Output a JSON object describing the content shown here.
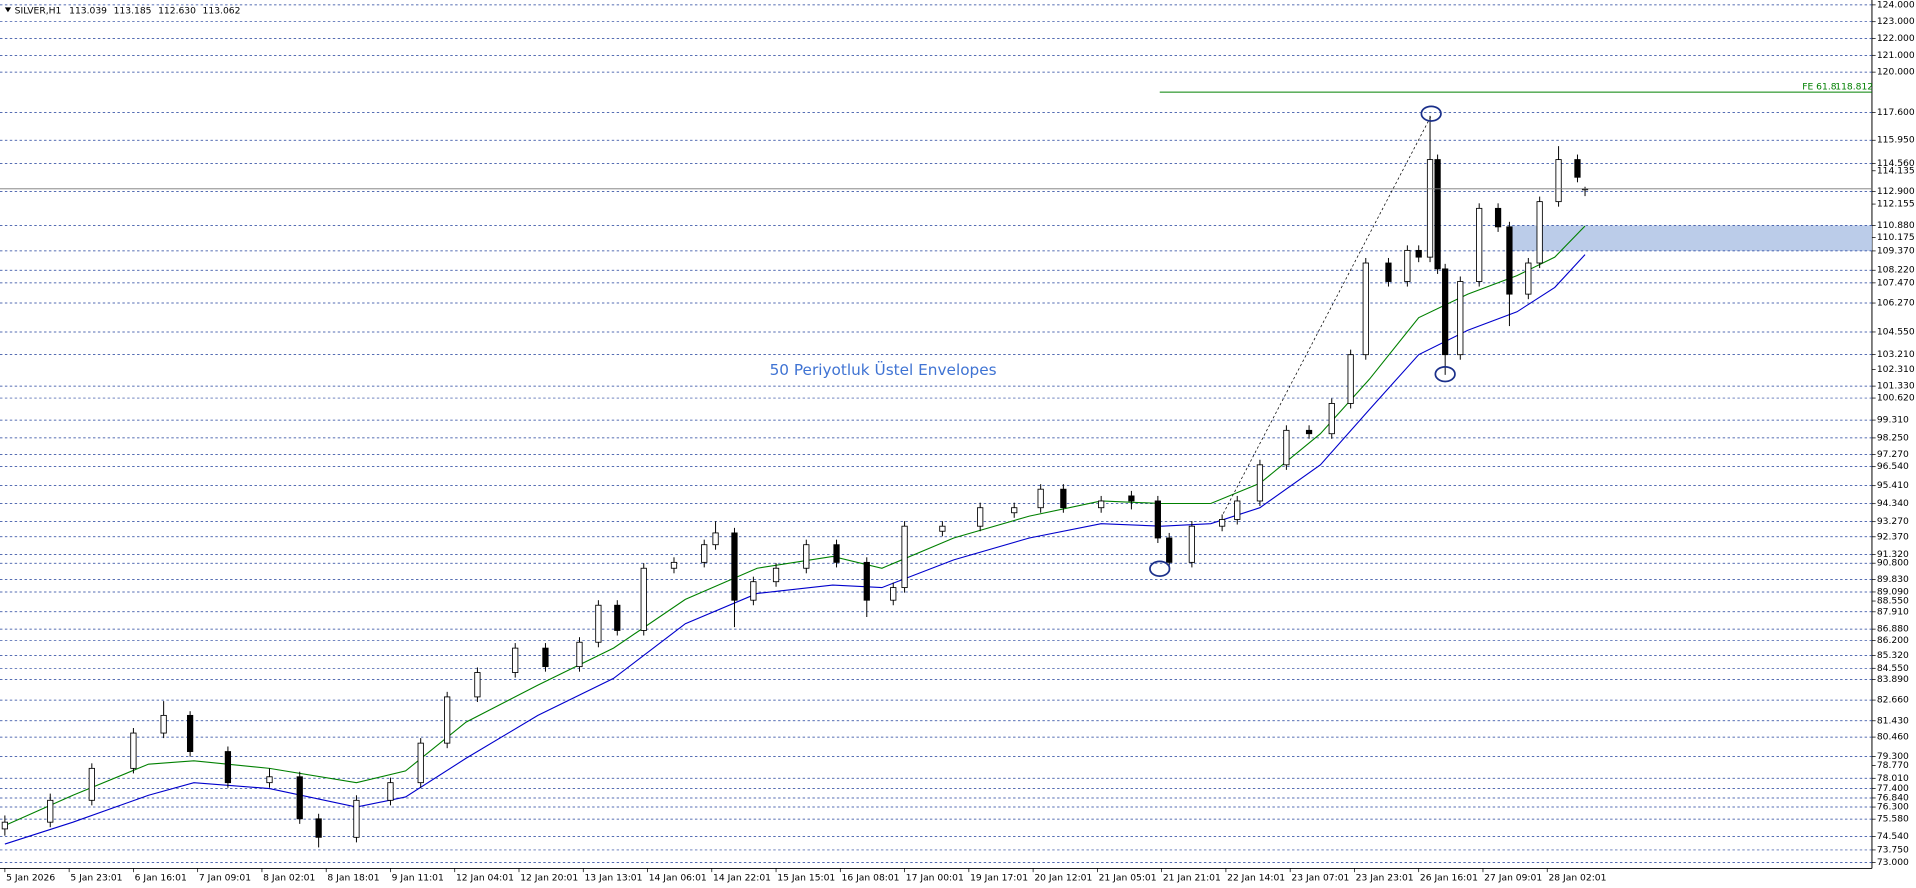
{
  "chart_data": {
    "type": "candlestick",
    "header": {
      "symbol": "SILVER,H1",
      "ohlc_labels": [
        "113.039",
        "113.185",
        "112.630",
        "113.062"
      ]
    },
    "annotation": "50 Periyotluk Üstel Envelopes",
    "xlim": [
      -1.29,
      493.9
    ],
    "ylim": [
      72.65,
      124.29
    ],
    "xticks": [
      {
        "value": 0,
        "label": "5 Jan 2026"
      },
      {
        "value": 17,
        "label": "5 Jan 23:01"
      },
      {
        "value": 34,
        "label": "6 Jan 16:01"
      },
      {
        "value": 51,
        "label": "7 Jan 09:01"
      },
      {
        "value": 68,
        "label": "8 Jan 02:01"
      },
      {
        "value": 85,
        "label": "8 Jan 18:01"
      },
      {
        "value": 102,
        "label": "9 Jan 11:01"
      },
      {
        "value": 119,
        "label": "12 Jan 04:01"
      },
      {
        "value": 136,
        "label": "12 Jan 20:01"
      },
      {
        "value": 153,
        "label": "13 Jan 13:01"
      },
      {
        "value": 170,
        "label": "14 Jan 06:01"
      },
      {
        "value": 187,
        "label": "14 Jan 22:01"
      },
      {
        "value": 204,
        "label": "15 Jan 15:01"
      },
      {
        "value": 221,
        "label": "16 Jan 08:01"
      },
      {
        "value": 238,
        "label": "17 Jan 00:01"
      },
      {
        "value": 255,
        "label": "19 Jan 17:01"
      },
      {
        "value": 272,
        "label": "20 Jan 12:01"
      },
      {
        "value": 289,
        "label": "21 Jan 05:01"
      },
      {
        "value": 306,
        "label": "21 Jan 21:01"
      },
      {
        "value": 323,
        "label": "22 Jan 14:01"
      },
      {
        "value": 340,
        "label": "23 Jan 07:01"
      },
      {
        "value": 357,
        "label": "23 Jan 23:01"
      },
      {
        "value": 374,
        "label": "26 Jan 16:01"
      },
      {
        "value": 391,
        "label": "27 Jan 09:01"
      },
      {
        "value": 408,
        "label": "28 Jan 02:01"
      }
    ],
    "yticks": [
      {
        "value": 124,
        "label": "124.000"
      },
      {
        "value": 123,
        "label": "123.000"
      },
      {
        "value": 122,
        "label": "122.000"
      },
      {
        "value": 121,
        "label": "121.000"
      },
      {
        "value": 120,
        "label": "120.000"
      },
      {
        "value": 117.6,
        "label": "117.600"
      },
      {
        "value": 115.95,
        "label": "115.950"
      },
      {
        "value": 114.56,
        "label": "114.560"
      },
      {
        "value": 112.9,
        "label": "112.900"
      },
      {
        "value": 110.88,
        "label": "110.880"
      },
      {
        "value": 109.37,
        "label": "109.370"
      },
      {
        "value": 108.22,
        "label": "108.220"
      },
      {
        "value": 107.47,
        "label": "107.470"
      },
      {
        "value": 106.27,
        "label": "106.270"
      },
      {
        "value": 104.55,
        "label": "104.550"
      },
      {
        "value": 103.21,
        "label": "103.210"
      },
      {
        "value": 101.33,
        "label": "101.330"
      },
      {
        "value": 100.62,
        "label": "100.620"
      },
      {
        "value": 99.31,
        "label": "99.310"
      },
      {
        "value": 98.25,
        "label": "98.250"
      },
      {
        "value": 97.27,
        "label": "97.270"
      },
      {
        "value": 96.54,
        "label": "96.540"
      },
      {
        "value": 95.41,
        "label": "95.410"
      },
      {
        "value": 94.34,
        "label": "94.340"
      },
      {
        "value": 93.27,
        "label": "93.270"
      },
      {
        "value": 92.37,
        "label": "92.370"
      },
      {
        "value": 91.32,
        "label": "91.320"
      },
      {
        "value": 90.8,
        "label": "90.800"
      },
      {
        "value": 89.83,
        "label": "89.830"
      },
      {
        "value": 89.09,
        "label": "89.090"
      },
      {
        "value": 87.91,
        "label": "87.910"
      },
      {
        "value": 86.88,
        "label": "86.880"
      },
      {
        "value": 86.2,
        "label": "86.200"
      },
      {
        "value": 85.32,
        "label": "85.320"
      },
      {
        "value": 84.55,
        "label": "84.550"
      },
      {
        "value": 83.89,
        "label": "83.890"
      },
      {
        "value": 82.66,
        "label": "82.660"
      },
      {
        "value": 81.43,
        "label": "81.430"
      },
      {
        "value": 80.46,
        "label": "80.460"
      },
      {
        "value": 79.3,
        "label": "79.300"
      },
      {
        "value": 78.01,
        "label": "78.010"
      },
      {
        "value": 77.4,
        "label": "77.400"
      },
      {
        "value": 76.84,
        "label": "76.840"
      },
      {
        "value": 76.3,
        "label": "76.300"
      },
      {
        "value": 75.58,
        "label": "75.580"
      },
      {
        "value": 74.54,
        "label": "74.540"
      },
      {
        "value": 73.75,
        "label": "73.750"
      },
      {
        "value": 73,
        "label": "73.000"
      }
    ],
    "scale_ticks": [
      {
        "value": 114.135,
        "label": "114.135"
      },
      {
        "value": 112.155,
        "label": "112.155"
      },
      {
        "value": 110.175,
        "label": "110.175"
      },
      {
        "value": 102.31,
        "label": "102.310"
      },
      {
        "value": 88.55,
        "label": "88.550"
      },
      {
        "value": 78.77,
        "label": "78.770"
      }
    ],
    "candles": {
      "x": [
        0,
        12,
        23,
        34,
        42,
        49,
        59,
        70,
        78,
        83,
        93,
        102,
        110,
        117,
        125,
        135,
        143,
        152,
        157,
        162,
        169,
        177,
        185,
        188,
        193,
        198,
        204,
        212,
        220,
        228,
        235,
        238,
        248,
        258,
        267,
        274,
        280,
        290,
        298,
        305,
        308,
        314,
        322,
        326,
        332,
        339,
        345,
        351,
        356,
        360,
        366,
        371,
        374,
        377,
        379,
        381,
        385,
        390,
        395,
        398,
        403,
        406,
        411,
        416,
        418
      ],
      "open": [
        75.0,
        75.4,
        76.7,
        78.6,
        80.7,
        81.75,
        79.6,
        77.75,
        78.1,
        75.6,
        74.5,
        76.7,
        77.75,
        80.1,
        82.85,
        84.3,
        85.75,
        84.65,
        86.1,
        88.3,
        86.8,
        90.5,
        90.85,
        91.9,
        92.6,
        88.6,
        89.7,
        90.5,
        91.9,
        90.85,
        88.6,
        89.35,
        92.7,
        93.0,
        93.8,
        94.1,
        95.2,
        94.1,
        94.8,
        94.5,
        92.3,
        90.85,
        93.0,
        93.4,
        94.5,
        96.65,
        98.7,
        98.5,
        100.3,
        103.2,
        108.65,
        107.55,
        109.4,
        109.0,
        114.8,
        108.3,
        103.2,
        107.55,
        111.9,
        110.8,
        106.8,
        108.65,
        112.3,
        114.8,
        113.039
      ],
      "high": [
        75.8,
        77.1,
        78.9,
        81.0,
        82.6,
        82.0,
        79.9,
        78.6,
        78.4,
        75.9,
        77.0,
        78.05,
        80.4,
        83.15,
        84.6,
        86.05,
        86.05,
        86.4,
        88.6,
        88.6,
        90.8,
        91.15,
        92.2,
        93.3,
        92.9,
        90.0,
        90.8,
        92.2,
        92.2,
        91.15,
        89.65,
        93.3,
        93.3,
        94.4,
        94.4,
        95.5,
        95.5,
        94.8,
        95.1,
        94.8,
        92.6,
        93.3,
        93.7,
        94.8,
        96.95,
        99.0,
        99.0,
        100.6,
        103.5,
        108.95,
        108.95,
        109.7,
        109.7,
        117.4,
        115.1,
        108.6,
        107.85,
        112.2,
        112.2,
        111.1,
        108.95,
        112.6,
        115.6,
        115.1,
        113.185
      ],
      "low": [
        74.6,
        75.1,
        76.4,
        78.3,
        80.4,
        79.3,
        77.45,
        77.45,
        75.3,
        73.9,
        74.2,
        76.4,
        77.45,
        79.8,
        82.55,
        84.0,
        84.35,
        84.35,
        85.8,
        86.5,
        86.5,
        90.2,
        90.55,
        91.6,
        87.0,
        88.3,
        89.4,
        90.2,
        90.55,
        87.6,
        88.3,
        89.05,
        92.4,
        92.7,
        93.5,
        93.8,
        93.8,
        93.8,
        94.0,
        92.0,
        90.3,
        90.55,
        92.7,
        93.1,
        94.2,
        96.35,
        98.2,
        98.2,
        100.0,
        102.9,
        107.25,
        107.25,
        108.7,
        108.7,
        108.0,
        102.0,
        102.9,
        107.25,
        110.5,
        104.9,
        106.5,
        108.35,
        112.0,
        113.45,
        112.63
      ],
      "close": [
        75.4,
        76.7,
        78.6,
        80.7,
        81.75,
        79.6,
        77.75,
        78.1,
        75.6,
        74.5,
        76.7,
        77.75,
        80.1,
        82.85,
        84.3,
        85.75,
        84.65,
        86.1,
        88.3,
        86.8,
        90.5,
        90.85,
        91.9,
        92.6,
        88.6,
        89.7,
        90.5,
        91.9,
        90.85,
        88.6,
        89.35,
        93.0,
        93.0,
        94.1,
        94.1,
        95.2,
        94.1,
        94.5,
        94.5,
        92.3,
        90.85,
        93.0,
        93.4,
        94.5,
        96.65,
        98.7,
        98.5,
        100.3,
        103.2,
        108.65,
        107.55,
        109.4,
        109.0,
        114.8,
        108.3,
        103.2,
        107.55,
        111.9,
        110.8,
        106.8,
        108.65,
        112.3,
        114.8,
        113.75,
        113.062
      ]
    },
    "envelopes": [
      {
        "color": "#008000",
        "x": [
          0,
          18,
          38,
          50,
          70,
          93,
          106,
          122,
          141,
          161,
          180,
          199,
          219,
          232,
          251,
          271,
          290,
          306,
          319,
          332,
          348,
          361,
          374,
          387,
          400,
          410,
          418
        ],
        "values": [
          75.2,
          77.0,
          78.85,
          79.05,
          78.6,
          77.75,
          78.45,
          81.35,
          83.55,
          85.75,
          88.65,
          90.5,
          91.2,
          90.5,
          92.3,
          93.6,
          94.5,
          94.35,
          94.35,
          95.55,
          98.5,
          101.75,
          105.4,
          106.8,
          107.9,
          109.0,
          110.85
        ]
      },
      {
        "color": "#0000cc",
        "x": [
          0,
          18,
          38,
          50,
          70,
          93,
          106,
          122,
          141,
          161,
          180,
          199,
          219,
          232,
          251,
          271,
          290,
          306,
          319,
          332,
          348,
          361,
          374,
          387,
          400,
          410,
          418
        ],
        "values": [
          74.1,
          75.4,
          77.0,
          77.75,
          77.4,
          76.3,
          76.9,
          79.2,
          81.75,
          83.95,
          87.2,
          89.0,
          89.5,
          89.35,
          91.0,
          92.3,
          93.15,
          93.0,
          93.15,
          94.1,
          96.65,
          99.95,
          103.2,
          104.65,
          105.75,
          107.2,
          109.15
        ]
      }
    ],
    "fibo": {
      "label": "FE 61.8",
      "value": 118.812,
      "x_start": 305.5,
      "color": "#008000"
    },
    "zone": {
      "x_start": 397.7,
      "top": 110.88,
      "bottom": 109.37,
      "color": "#b4c7e7"
    },
    "trendline": {
      "x": [
        322.3,
        377.3
      ],
      "y": [
        93.75,
        117.4
      ]
    },
    "ellipses": {
      "x": [
        305.5,
        377.3,
        381
      ],
      "y": [
        90.47,
        117.53,
        102.04
      ],
      "color": "#1a2f8a"
    }
  }
}
